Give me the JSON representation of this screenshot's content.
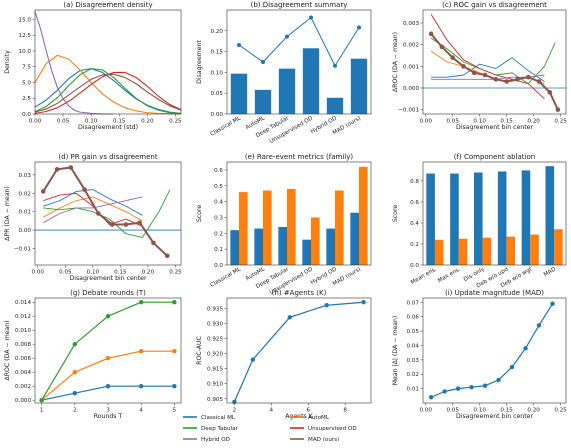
{
  "colors": {
    "Classical ML": "#1f77b4",
    "AutoML": "#ff7f0e",
    "Deep Tabular": "#2ca02c",
    "Unsupervised OD": "#d62728",
    "Hybrid OD": "#9467bd",
    "MAD (ours)": "#8c564b"
  },
  "legend": {
    "placement": "bottom-center",
    "entries": [
      "Classical ML",
      "AutoML",
      "Deep Tabular",
      "Unsupervised OD",
      "Hybrid OD",
      "MAD (ours)"
    ]
  },
  "chart_data": [
    {
      "id": "a",
      "type": "line",
      "title": "(a) Disagreement density",
      "xlabel": "Disagreement (std)",
      "ylabel": "Density",
      "xlim": [
        0,
        0.26
      ],
      "ylim": [
        0,
        16.5
      ],
      "xticks": [
        0.0,
        0.05,
        0.1,
        0.15,
        0.2,
        0.25
      ],
      "xtick_labels": [
        "0.00",
        "0.05",
        "0.10",
        "0.15",
        "0.20",
        "0.25"
      ],
      "yticks": [
        0,
        2.5,
        5,
        7.5,
        10,
        12.5,
        15
      ],
      "ytick_labels": [
        "0.0",
        "2.5",
        "5.0",
        "7.5",
        "10.0",
        "12.5",
        "15.0"
      ],
      "series": [
        {
          "name": "Classical ML",
          "x": [
            0,
            0.02,
            0.04,
            0.06,
            0.08,
            0.1,
            0.12,
            0.14,
            0.16,
            0.18,
            0.2,
            0.22,
            0.24,
            0.26
          ],
          "y": [
            1.1,
            2.2,
            3.8,
            5.6,
            6.9,
            7.2,
            6.6,
            5.3,
            3.8,
            2.4,
            1.4,
            0.7,
            0.3,
            0.1
          ]
        },
        {
          "name": "AutoML",
          "x": [
            0,
            0.02,
            0.04,
            0.06,
            0.08,
            0.1,
            0.12,
            0.14,
            0.16,
            0.18,
            0.2,
            0.22,
            0.24,
            0.26
          ],
          "y": [
            5.0,
            8.0,
            9.3,
            8.7,
            7.0,
            5.0,
            3.2,
            1.9,
            1.0,
            0.5,
            0.2,
            0.1,
            0.05,
            0.0
          ]
        },
        {
          "name": "Deep Tabular",
          "x": [
            0,
            0.02,
            0.04,
            0.06,
            0.08,
            0.1,
            0.12,
            0.14,
            0.16,
            0.18,
            0.2,
            0.22,
            0.24,
            0.26
          ],
          "y": [
            0.4,
            1.2,
            2.6,
            4.5,
            6.2,
            7.2,
            7.0,
            5.8,
            4.1,
            2.5,
            1.3,
            0.6,
            0.2,
            0.1
          ]
        },
        {
          "name": "Unsupervised OD",
          "x": [
            0,
            0.02,
            0.04,
            0.06,
            0.08,
            0.1,
            0.12,
            0.14,
            0.16,
            0.18,
            0.2,
            0.22,
            0.24,
            0.26
          ],
          "y": [
            0.1,
            0.4,
            1.0,
            2.0,
            3.3,
            4.7,
            5.9,
            6.6,
            6.6,
            5.8,
            4.4,
            2.8,
            1.5,
            0.7
          ]
        },
        {
          "name": "Hybrid OD",
          "x": [
            0,
            0.01,
            0.02,
            0.03,
            0.04,
            0.05,
            0.06,
            0.07,
            0.08,
            0.1,
            0.12,
            0.14
          ],
          "y": [
            16.2,
            13.5,
            10.0,
            6.8,
            4.2,
            2.4,
            1.3,
            0.6,
            0.3,
            0.1,
            0.0,
            0.0
          ]
        },
        {
          "name": "MAD (ours)",
          "x": [
            0,
            0.02,
            0.04,
            0.06,
            0.08,
            0.1,
            0.12,
            0.14,
            0.16,
            0.18,
            0.2,
            0.22,
            0.24,
            0.26
          ],
          "y": [
            0.3,
            0.8,
            1.7,
            3.0,
            4.3,
            5.5,
            6.2,
            6.3,
            5.8,
            4.8,
            3.5,
            2.3,
            1.3,
            0.6
          ]
        }
      ]
    },
    {
      "id": "b",
      "type": "bar",
      "title": "(b) Disagreement summary",
      "ylabel": "Disagreement",
      "ylim": [
        0,
        0.25
      ],
      "yticks": [
        0,
        0.05,
        0.1,
        0.15,
        0.2
      ],
      "ytick_labels": [
        "0.00",
        "0.05",
        "0.10",
        "0.15",
        "0.20"
      ],
      "categories": [
        "Classical ML",
        "AutoML",
        "Deep Tabular",
        "Unsupervised OD",
        "Hybrid OD",
        "MAD (ours)"
      ],
      "values": [
        0.097,
        0.058,
        0.109,
        0.158,
        0.039,
        0.133
      ],
      "line_values": [
        0.166,
        0.125,
        0.186,
        0.232,
        0.116,
        0.208
      ]
    },
    {
      "id": "c",
      "type": "line",
      "title": "(c) ROC gain vs disagreement",
      "xlabel": "Disagreement bin center",
      "ylabel": "ΔROC (DA − mean)",
      "xlim": [
        -0.005,
        0.26
      ],
      "ylim": [
        -0.0012,
        0.0036
      ],
      "xticks": [
        0,
        0.05,
        0.1,
        0.15,
        0.2,
        0.25
      ],
      "xtick_labels": [
        "0.00",
        "0.05",
        "0.10",
        "0.15",
        "0.20",
        "0.25"
      ],
      "yticks": [
        -0.001,
        0,
        0.001,
        0.002,
        0.003
      ],
      "ytick_labels": [
        "−0.001",
        "0.000",
        "0.001",
        "0.002",
        "0.003"
      ],
      "series": [
        {
          "name": "Classical ML",
          "x": [
            0.01,
            0.04,
            0.07,
            0.1,
            0.13,
            0.16,
            0.19,
            0.22
          ],
          "y": [
            0.0005,
            0.0005,
            0.0006,
            0.0011,
            0.0009,
            0.0014,
            0.0008,
            0.0003
          ]
        },
        {
          "name": "AutoML",
          "x": [
            0.01,
            0.04,
            0.07,
            0.1,
            0.13,
            0.16,
            0.19,
            0.22
          ],
          "y": [
            0.0017,
            0.0012,
            0.001,
            0.0007,
            0.0004,
            0.0003,
            0.0005,
            0.0002
          ]
        },
        {
          "name": "Deep Tabular",
          "x": [
            0.01,
            0.04,
            0.07,
            0.1,
            0.13,
            0.16,
            0.19,
            0.22,
            0.24
          ],
          "y": [
            0.0023,
            0.0018,
            0.0012,
            0.0009,
            0.0006,
            0.0007,
            0.0002,
            0.001,
            0.0021
          ]
        },
        {
          "name": "Unsupervised OD",
          "x": [
            0.01,
            0.04,
            0.07,
            0.1,
            0.13,
            0.16,
            0.19,
            0.22
          ],
          "y": [
            0.0034,
            0.0022,
            0.0013,
            0.0009,
            0.0006,
            0.0004,
            0.0002,
            -0.0005
          ]
        },
        {
          "name": "Hybrid OD",
          "x": [
            0.01,
            0.04,
            0.07,
            0.1,
            0.13,
            0.16,
            0.19,
            0.22
          ],
          "y": [
            0.0004,
            0.0004,
            0.0004,
            0.0004,
            0.0004,
            0.0005,
            0.0005,
            0.0006
          ]
        },
        {
          "name": "MAD (ours)",
          "x": [
            0.01,
            0.03,
            0.05,
            0.07,
            0.09,
            0.11,
            0.13,
            0.15,
            0.17,
            0.19,
            0.21,
            0.23,
            0.245
          ],
          "y": [
            0.0025,
            0.0019,
            0.0014,
            0.001,
            0.0007,
            0.0006,
            0.0004,
            0.0003,
            0.0004,
            0.0005,
            0.0003,
            -0.0002,
            -0.001
          ]
        }
      ]
    },
    {
      "id": "d",
      "type": "line",
      "title": "(d) PR gain vs disagreement",
      "xlabel": "Disagreement bin center",
      "ylabel": "ΔPR (DA − mean)",
      "xlim": [
        -0.005,
        0.26
      ],
      "ylim": [
        -0.019,
        0.037
      ],
      "xticks": [
        0,
        0.05,
        0.1,
        0.15,
        0.2,
        0.25
      ],
      "xtick_labels": [
        "0.00",
        "0.05",
        "0.10",
        "0.15",
        "0.20",
        "0.25"
      ],
      "yticks": [
        -0.01,
        0,
        0.01,
        0.02,
        0.03
      ],
      "ytick_labels": [
        "−0.01",
        "0.00",
        "0.01",
        "0.02",
        "0.03"
      ],
      "series": [
        {
          "name": "Classical ML",
          "x": [
            0.01,
            0.04,
            0.07,
            0.1,
            0.13,
            0.16,
            0.19
          ],
          "y": [
            0.013,
            0.016,
            0.021,
            0.022,
            0.017,
            0.013,
            0.008
          ]
        },
        {
          "name": "AutoML",
          "x": [
            0.01,
            0.04,
            0.07,
            0.1,
            0.13,
            0.16,
            0.19
          ],
          "y": [
            0.007,
            0.012,
            0.016,
            0.018,
            0.014,
            0.01,
            0.005
          ]
        },
        {
          "name": "Deep Tabular",
          "x": [
            0.01,
            0.04,
            0.07,
            0.1,
            0.13,
            0.16,
            0.19,
            0.22,
            0.24
          ],
          "y": [
            0.012,
            0.011,
            0.012,
            0.01,
            0.006,
            -0.002,
            -0.004,
            0.01,
            0.022
          ]
        },
        {
          "name": "Unsupervised OD",
          "x": [
            0.01,
            0.04,
            0.07,
            0.1,
            0.13,
            0.16,
            0.19
          ],
          "y": [
            0.016,
            0.019,
            0.02,
            0.013,
            0.003,
            0.006,
            0.002
          ]
        },
        {
          "name": "Hybrid OD",
          "x": [
            0.01,
            0.04,
            0.07,
            0.1,
            0.13,
            0.16,
            0.19
          ],
          "y": [
            0.004,
            0.009,
            0.012,
            0.012,
            0.014,
            0.016,
            0.018
          ]
        },
        {
          "name": "MAD (ours)",
          "x": [
            0.01,
            0.035,
            0.06,
            0.085,
            0.11,
            0.135,
            0.16,
            0.185,
            0.21,
            0.235
          ],
          "y": [
            0.021,
            0.033,
            0.034,
            0.022,
            0.009,
            0.003,
            0.003,
            0.004,
            -0.007,
            -0.014
          ]
        }
      ]
    },
    {
      "id": "e",
      "type": "bar",
      "title": "(e) Rare-event metrics (family)",
      "ylabel": "Score",
      "ylim": [
        0,
        0.65
      ],
      "yticks": [
        0,
        0.1,
        0.2,
        0.3,
        0.4,
        0.5,
        0.6
      ],
      "ytick_labels": [
        "0.0",
        "0.1",
        "0.2",
        "0.3",
        "0.4",
        "0.5",
        "0.6"
      ],
      "categories": [
        "Classical ML",
        "AutoML",
        "Deep Tabular",
        "Unsupervised OD",
        "Hybrid OD",
        "MAD (ours)"
      ],
      "series": [
        {
          "color_key": "Classical ML",
          "values": [
            0.22,
            0.23,
            0.24,
            0.16,
            0.23,
            0.33
          ]
        },
        {
          "color_key": "AutoML",
          "values": [
            0.46,
            0.47,
            0.48,
            0.3,
            0.47,
            0.62
          ]
        }
      ]
    },
    {
      "id": "f",
      "type": "bar",
      "title": "(f) Component ablation",
      "ylabel": "Score",
      "ylim": [
        0,
        0.98
      ],
      "yticks": [
        0,
        0.2,
        0.4,
        0.6,
        0.8
      ],
      "ytick_labels": [
        "0.0",
        "0.2",
        "0.4",
        "0.6",
        "0.8"
      ],
      "categories": [
        "Mean ens.",
        "Max ens.",
        "Dis-only",
        "Deb w/o upd",
        "Deb w/o wgt",
        "MAD"
      ],
      "series": [
        {
          "color_key": "Classical ML",
          "values": [
            0.87,
            0.87,
            0.88,
            0.89,
            0.9,
            0.94
          ]
        },
        {
          "color_key": "AutoML",
          "values": [
            0.24,
            0.25,
            0.26,
            0.27,
            0.29,
            0.34
          ]
        }
      ]
    },
    {
      "id": "g",
      "type": "line",
      "title": "(g) Debate rounds (T)",
      "xlabel": "Rounds T",
      "ylabel": "ΔROC (DA − mean)",
      "xlim": [
        0.8,
        5.2
      ],
      "ylim": [
        -0.0004,
        0.0146
      ],
      "xticks": [
        1,
        2,
        3,
        4,
        5
      ],
      "xtick_labels": [
        "1",
        "2",
        "3",
        "4",
        "5"
      ],
      "yticks": [
        0,
        0.002,
        0.004,
        0.006,
        0.008,
        0.01,
        0.012,
        0.014
      ],
      "ytick_labels": [
        "0.000",
        "0.002",
        "0.004",
        "0.006",
        "0.008",
        "0.010",
        "0.012",
        "0.014"
      ],
      "series": [
        {
          "color_key": "Classical ML",
          "x": [
            1,
            2,
            3,
            4,
            5
          ],
          "y": [
            0.0,
            0.001,
            0.002,
            0.002,
            0.002
          ]
        },
        {
          "color_key": "AutoML",
          "x": [
            1,
            2,
            3,
            4,
            5
          ],
          "y": [
            0.0,
            0.004,
            0.006,
            0.007,
            0.007
          ]
        },
        {
          "color_key": "Deep Tabular",
          "x": [
            1,
            2,
            3,
            4,
            5
          ],
          "y": [
            0.0,
            0.008,
            0.012,
            0.014,
            0.014
          ]
        }
      ]
    },
    {
      "id": "h",
      "type": "line",
      "title": "(h) #Agents (K)",
      "xlabel": "Agents K",
      "ylabel": "ROC-AUC",
      "xlim": [
        1.6,
        9.4
      ],
      "ylim": [
        0.9036,
        0.9384
      ],
      "xticks": [
        2,
        4,
        6,
        8
      ],
      "xtick_labels": [
        "2",
        "4",
        "6",
        "8"
      ],
      "yticks": [
        0.905,
        0.91,
        0.915,
        0.92,
        0.925,
        0.93,
        0.935
      ],
      "ytick_labels": [
        "0.905",
        "0.910",
        "0.915",
        "0.920",
        "0.925",
        "0.930",
        "0.935"
      ],
      "series": [
        {
          "color_key": "Classical ML",
          "x": [
            2,
            3,
            5,
            7,
            9
          ],
          "y": [
            0.904,
            0.918,
            0.932,
            0.936,
            0.937
          ]
        }
      ]
    },
    {
      "id": "i",
      "type": "line",
      "title": "(i) Update magnitude (MAD)",
      "xlabel": "Disagreement bin center",
      "ylabel": "Mean |Δ| (DA − mean)",
      "xlim": [
        -0.005,
        0.26
      ],
      "ylim": [
        0,
        0.073
      ],
      "xticks": [
        0,
        0.05,
        0.1,
        0.15,
        0.2,
        0.25
      ],
      "xtick_labels": [
        "0.00",
        "0.05",
        "0.10",
        "0.15",
        "0.20",
        "0.25"
      ],
      "yticks": [
        0.01,
        0.02,
        0.03,
        0.04,
        0.05,
        0.06,
        0.07
      ],
      "ytick_labels": [
        "0.01",
        "0.02",
        "0.03",
        "0.04",
        "0.05",
        "0.06",
        "0.07"
      ],
      "series": [
        {
          "color_key": "Classical ML",
          "x": [
            0.01,
            0.035,
            0.06,
            0.085,
            0.11,
            0.135,
            0.16,
            0.185,
            0.21,
            0.235
          ],
          "y": [
            0.004,
            0.008,
            0.01,
            0.011,
            0.012,
            0.016,
            0.025,
            0.038,
            0.054,
            0.069
          ]
        }
      ]
    }
  ]
}
